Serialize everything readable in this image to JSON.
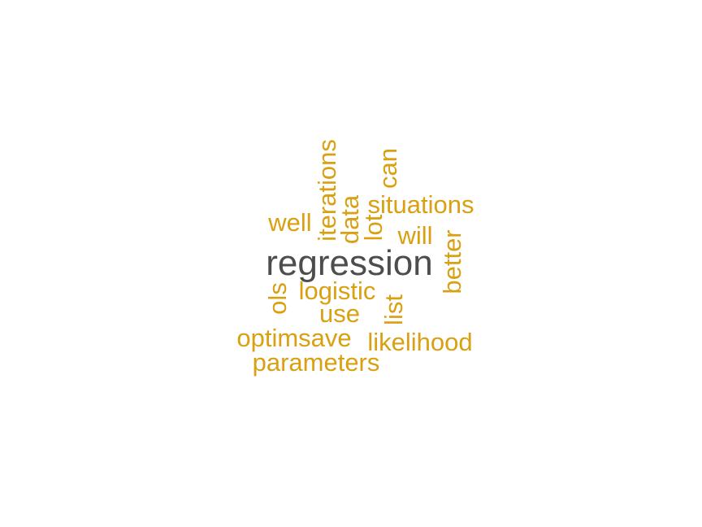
{
  "colors": {
    "primary_word": "#4d4d4f",
    "secondary_words": "#d9a011",
    "background": "#ffffff"
  },
  "words": [
    {
      "id": "regression",
      "text": "regression",
      "color": "primary"
    },
    {
      "id": "iterations",
      "text": "iterations",
      "color": "secondary"
    },
    {
      "id": "can",
      "text": "can",
      "color": "secondary"
    },
    {
      "id": "situations",
      "text": "situations",
      "color": "secondary"
    },
    {
      "id": "well",
      "text": "well",
      "color": "secondary"
    },
    {
      "id": "data",
      "text": "data",
      "color": "secondary"
    },
    {
      "id": "lot",
      "text": "lot",
      "color": "secondary"
    },
    {
      "id": "will",
      "text": "will",
      "color": "secondary"
    },
    {
      "id": "better",
      "text": "better",
      "color": "secondary"
    },
    {
      "id": "ols",
      "text": "ols",
      "color": "secondary"
    },
    {
      "id": "logistic",
      "text": "logistic",
      "color": "secondary"
    },
    {
      "id": "use",
      "text": "use",
      "color": "secondary"
    },
    {
      "id": "list",
      "text": "list",
      "color": "secondary"
    },
    {
      "id": "optimsave",
      "text": "optimsave",
      "color": "secondary"
    },
    {
      "id": "likelihood",
      "text": "likelihood",
      "color": "secondary"
    },
    {
      "id": "parameters",
      "text": "parameters",
      "color": "secondary"
    }
  ]
}
